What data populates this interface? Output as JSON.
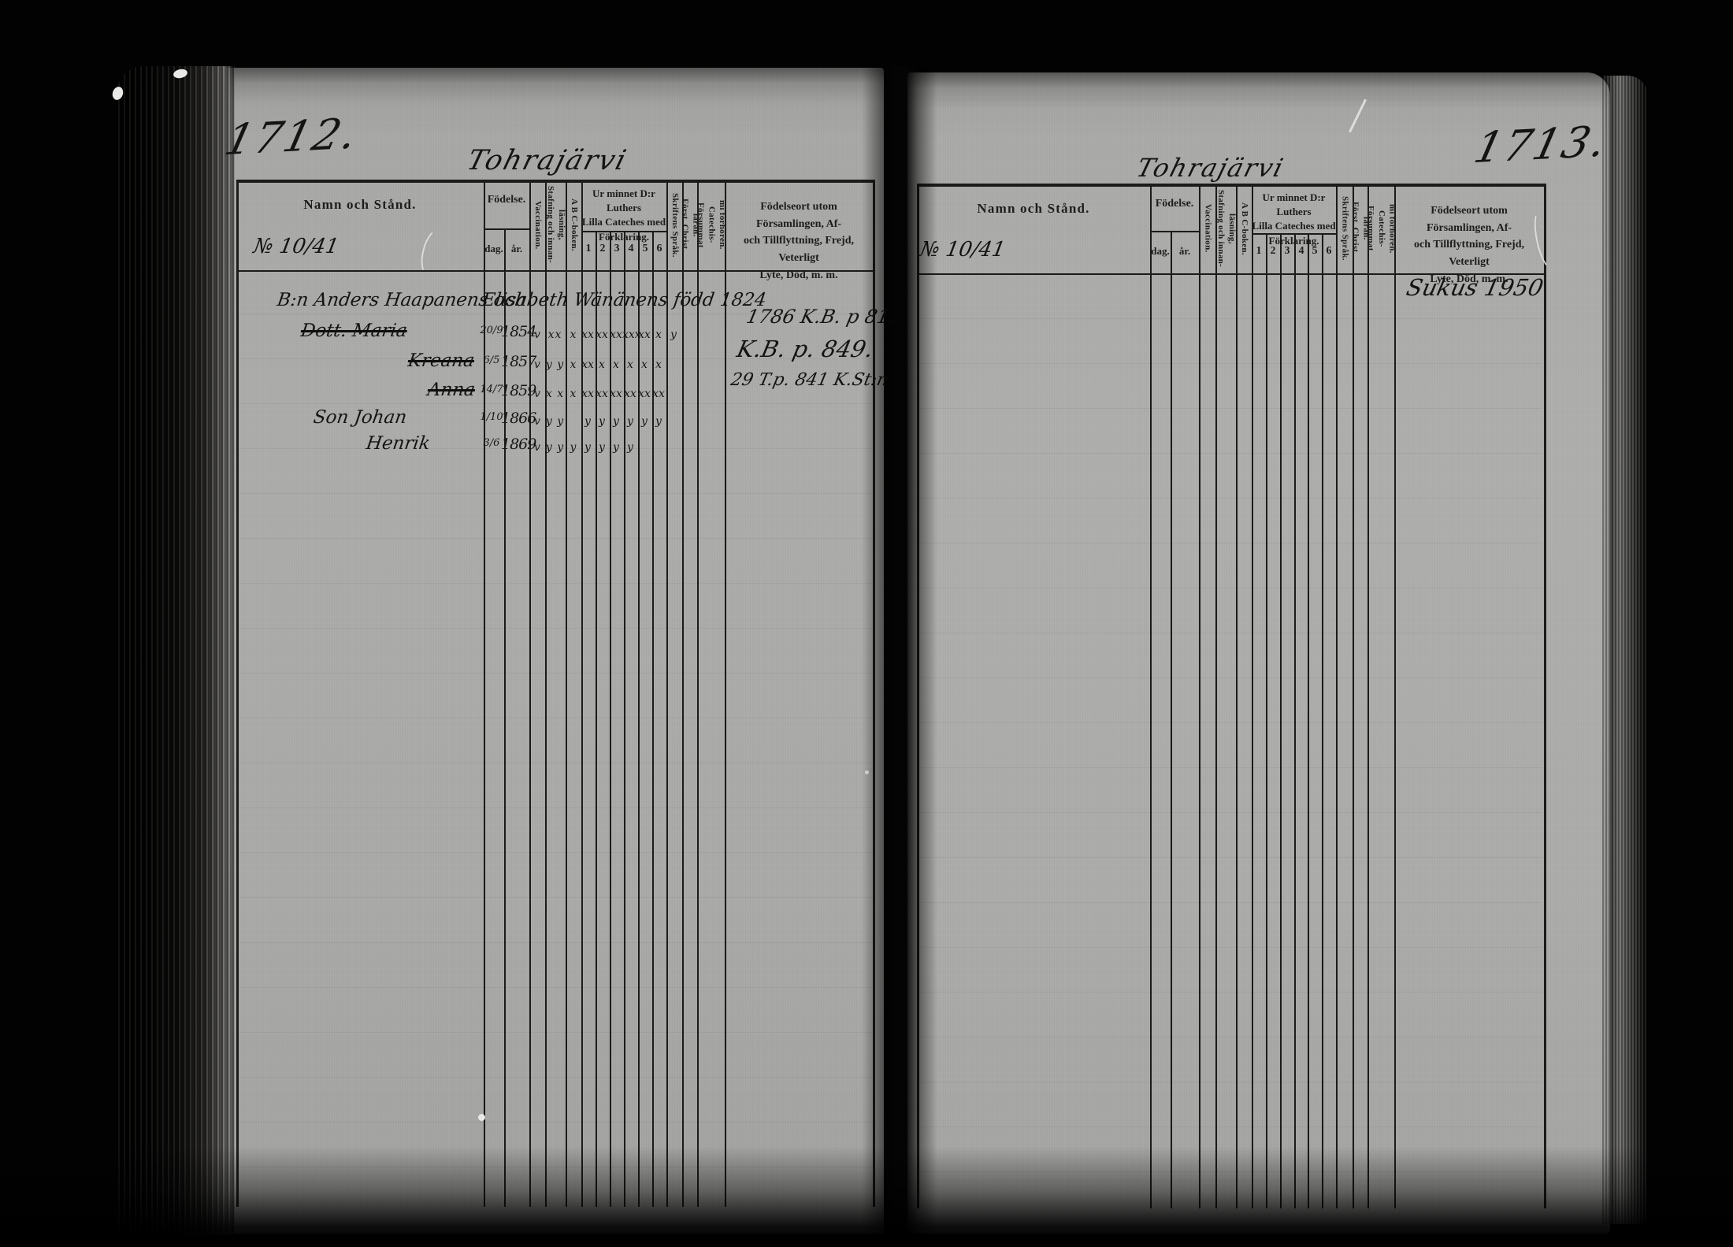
{
  "doc": {
    "columns": {
      "name": "Namn och Stånd.",
      "birth": "Födelse.",
      "day": "dag.",
      "year": "år.",
      "vaccination": "Vaccination.",
      "spelling": "Stafning och innan-\nläsning,",
      "abc": "A B C-boken.",
      "catechism": "Ur minnet D:r Luthers\nLilla Cateches med\nFörklaring.",
      "cat_nums": [
        "1",
        "2",
        "3",
        "4",
        "5",
        "6"
      ],
      "scripture": "Skriftens Språk.",
      "christianity": "Först. Christ.\nläran.",
      "missed": "Försummat Catechis-\nmi förhören.",
      "notes": "Födelseort utom Församlingen, Af-\noch Tillflyttning, Frejd, Veterligt\nLyte, Död, m. m."
    },
    "left_page": {
      "page_number": "1712.",
      "title": "Tohrajärvi",
      "record_number": "№ 10/41",
      "family_rows": [
        {
          "name": "B:n Anders Haapanens och",
          "continuation": "Elisabeth Wänänens född 1824",
          "struck": false
        },
        {
          "name": "Dott. Maria",
          "struck": true,
          "day": "20/9",
          "year": "1854",
          "vaccination": "v",
          "spelling": "xx",
          "abc": "x",
          "cat": [
            "xx",
            "xx",
            "xx",
            "xxx",
            "xx",
            "x"
          ],
          "scripture": "y"
        },
        {
          "name": "Kreana",
          "struck": true,
          "day": "6/5",
          "year": "1857",
          "vaccination": "v",
          "spelling": "y y",
          "abc": "x",
          "cat": [
            "xx",
            "x",
            "x",
            "x",
            "x",
            "x"
          ],
          "scripture": ""
        },
        {
          "name": "Anna",
          "struck": true,
          "day": "14/7",
          "year": "1859",
          "vaccination": "v",
          "spelling": "x x",
          "abc": "x",
          "cat": [
            "xx",
            "xx",
            "xx",
            "xx",
            "xx",
            "xx"
          ],
          "scripture": ""
        },
        {
          "name": "Son Johan",
          "struck": false,
          "day": "1/10",
          "year": "1866",
          "vaccination": "v",
          "spelling": "y y",
          "abc": "",
          "cat": [
            "y",
            "y",
            "y",
            "y",
            "y",
            "y"
          ],
          "scripture": ""
        },
        {
          "name": "Henrik",
          "struck": false,
          "day": "3/6",
          "year": "1869",
          "vaccination": "v",
          "spelling": "y y",
          "abc": "y",
          "cat": [
            "y",
            "y",
            "y",
            "y",
            "",
            ""
          ],
          "scripture": ""
        }
      ],
      "notes_lines": [
        "1786 K.B. p 815.",
        "K.B. p. 849.",
        "29 T.p. 841 K.St:n"
      ]
    },
    "right_page": {
      "page_number": "1713.",
      "title": "Tohrajärvi",
      "record_number": "№ 10/41",
      "family_rows": [],
      "notes_lines": [
        "Sukus 1950"
      ]
    }
  }
}
